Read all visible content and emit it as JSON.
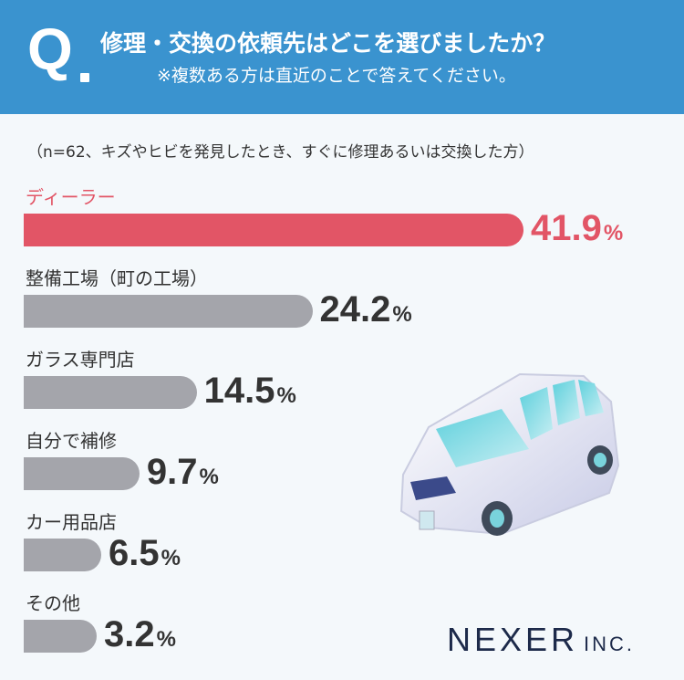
{
  "header": {
    "q_mark": "Q",
    "title": "修理・交換の依頼先はどこを選びましたか？",
    "subtitle": "※複数ある方は直近のことで答えてください。"
  },
  "note": "（n=62、キズやヒビを発見したとき、すぐに修理あるいは交換した方）",
  "chart_data": {
    "type": "bar",
    "orientation": "horizontal",
    "categories": [
      "ディーラー",
      "整備工場（町の工場）",
      "ガラス専門店",
      "自分で補修",
      "カー用品店",
      "その他"
    ],
    "values": [
      41.9,
      24.2,
      14.5,
      9.7,
      6.5,
      3.2
    ],
    "value_suffix": "%",
    "highlight_index": 0,
    "highlight_color": "#e25566",
    "bar_color": "#a4a5ab"
  },
  "logo": {
    "main": "NEXER",
    "inc": "INC."
  }
}
